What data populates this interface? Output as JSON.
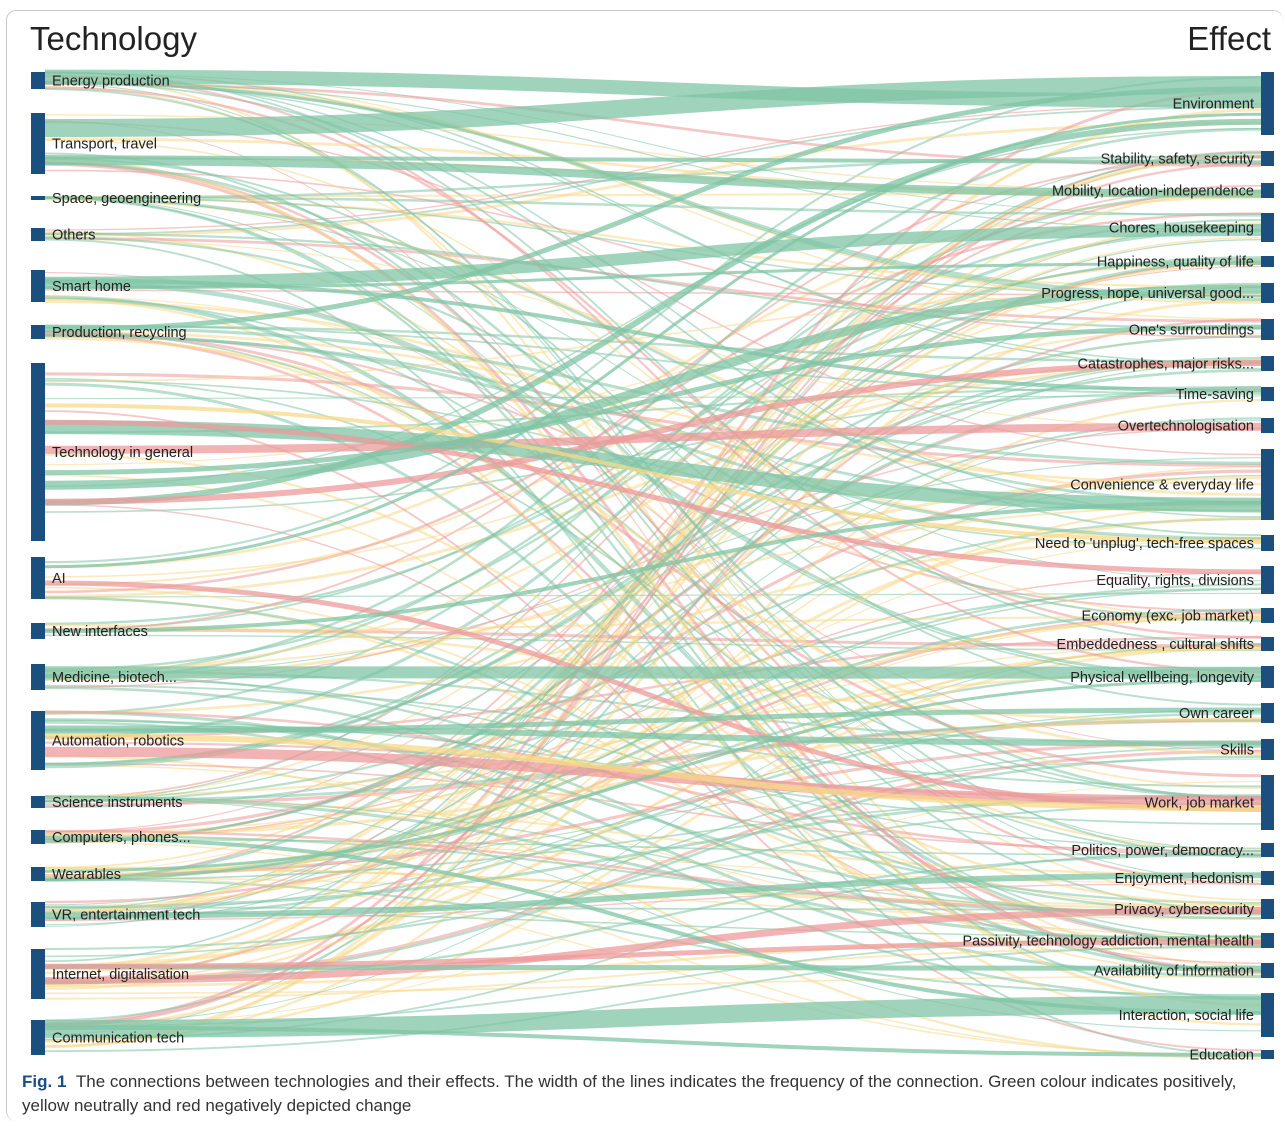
{
  "headers": {
    "left": "Technology",
    "right": "Effect"
  },
  "caption": {
    "label": "Fig. 1",
    "text": "The connections between technologies and their effects. The width of the lines indicates the frequency of the connection. Green colour indicates positively, yellow neutrally and red negatively depicted change"
  },
  "colors": {
    "node": "#1b4f7e",
    "positive": "#7fc4a6",
    "neutral": "#f7d98a",
    "negative": "#ec9a9a"
  },
  "technologies": [
    "Energy production",
    "Transport, travel",
    "Space, geoengineering",
    "Others",
    "Smart home",
    "Production, recycling",
    "Technology in general",
    "AI",
    "New interfaces",
    "Medicine, biotech...",
    "Automation, robotics",
    "Science instruments",
    "Computers, phones...",
    "Wearables",
    "VR, entertainment tech",
    "Internet, digitalisation",
    "Communication tech"
  ],
  "effects": [
    "Environment",
    "Stability, safety, security",
    "Mobility, location-independence",
    "Chores, housekeeping",
    "Happiness, quality of life",
    "Progress, hope, universal good...",
    "One's surroundings",
    "Catastrophes, major risks...",
    "Time-saving",
    "Overtechnologisation",
    "Convenience & everyday life",
    "Need to 'unplug', tech-free spaces",
    "Equality, rights, divisions",
    "Economy (exc. job market)",
    "Embeddedness , cultural shifts",
    "Physical wellbeing, longevity",
    "Own career",
    "Skills",
    "Work, job market",
    "Politics, power, democracy...",
    "Enjoyment, hedonism",
    "Privacy, cybersecurity",
    "Passivity, technology addiction, mental health",
    "Availability of information",
    "Interaction, social life",
    "Education"
  ]
}
